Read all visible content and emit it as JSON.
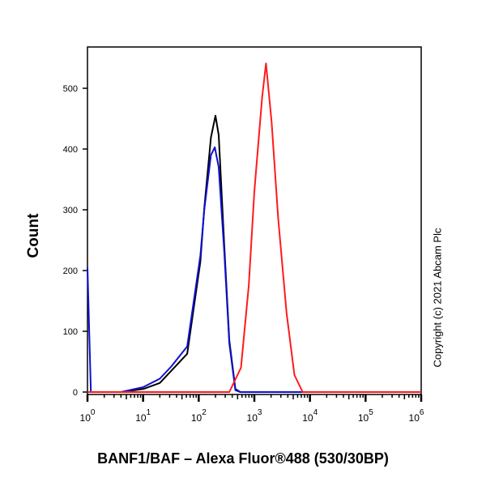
{
  "chart_data": {
    "type": "line",
    "title": "",
    "xlabel": "BANF1/BAF – Alexa Fluor®488 (530/30BP)",
    "ylabel": "Count",
    "x_scale": "log",
    "xlim": [
      1,
      1000000
    ],
    "ylim": [
      0,
      568
    ],
    "yticks": [
      0,
      100,
      200,
      300,
      400,
      500
    ],
    "xticks": [
      1,
      10,
      100,
      1000,
      10000,
      100000,
      1000000
    ],
    "xtick_labels": [
      {
        "base": "10",
        "exp": "0"
      },
      {
        "base": "10",
        "exp": "1"
      },
      {
        "base": "10",
        "exp": "2"
      },
      {
        "base": "10",
        "exp": "3"
      },
      {
        "base": "10",
        "exp": "4"
      },
      {
        "base": "10",
        "exp": "5"
      },
      {
        "base": "10",
        "exp": "6"
      }
    ],
    "grid": false,
    "series": [
      {
        "color": "#000000",
        "points": [
          [
            1,
            0
          ],
          [
            4,
            0
          ],
          [
            10,
            5
          ],
          [
            20,
            15
          ],
          [
            32,
            35
          ],
          [
            62,
            63
          ],
          [
            107,
            215
          ],
          [
            126,
            303
          ],
          [
            166,
            419
          ],
          [
            200,
            455
          ],
          [
            229,
            423
          ],
          [
            288,
            241
          ],
          [
            355,
            85
          ],
          [
            457,
            5
          ],
          [
            562,
            0
          ],
          [
            1000000,
            0
          ]
        ]
      },
      {
        "color": "#1010d0",
        "points": [
          [
            1,
            205
          ],
          [
            1.15,
            0
          ],
          [
            4,
            0
          ],
          [
            10,
            8
          ],
          [
            20,
            22
          ],
          [
            32,
            42
          ],
          [
            62,
            75
          ],
          [
            107,
            225
          ],
          [
            126,
            300
          ],
          [
            166,
            390
          ],
          [
            195,
            403
          ],
          [
            229,
            370
          ],
          [
            288,
            230
          ],
          [
            355,
            80
          ],
          [
            457,
            3
          ],
          [
            562,
            0
          ],
          [
            1000000,
            0
          ]
        ]
      },
      {
        "color": "#ff1a1a",
        "points": [
          [
            1,
            0
          ],
          [
            355,
            0
          ],
          [
            575,
            40
          ],
          [
            794,
            175
          ],
          [
            1000,
            330
          ],
          [
            1380,
            485
          ],
          [
            1620,
            541
          ],
          [
            2040,
            445
          ],
          [
            2690,
            285
          ],
          [
            3800,
            130
          ],
          [
            5250,
            28
          ],
          [
            7410,
            0
          ],
          [
            1000000,
            0
          ]
        ]
      }
    ]
  },
  "copyright": "Copyright (c) 2021 Abcam Plc"
}
